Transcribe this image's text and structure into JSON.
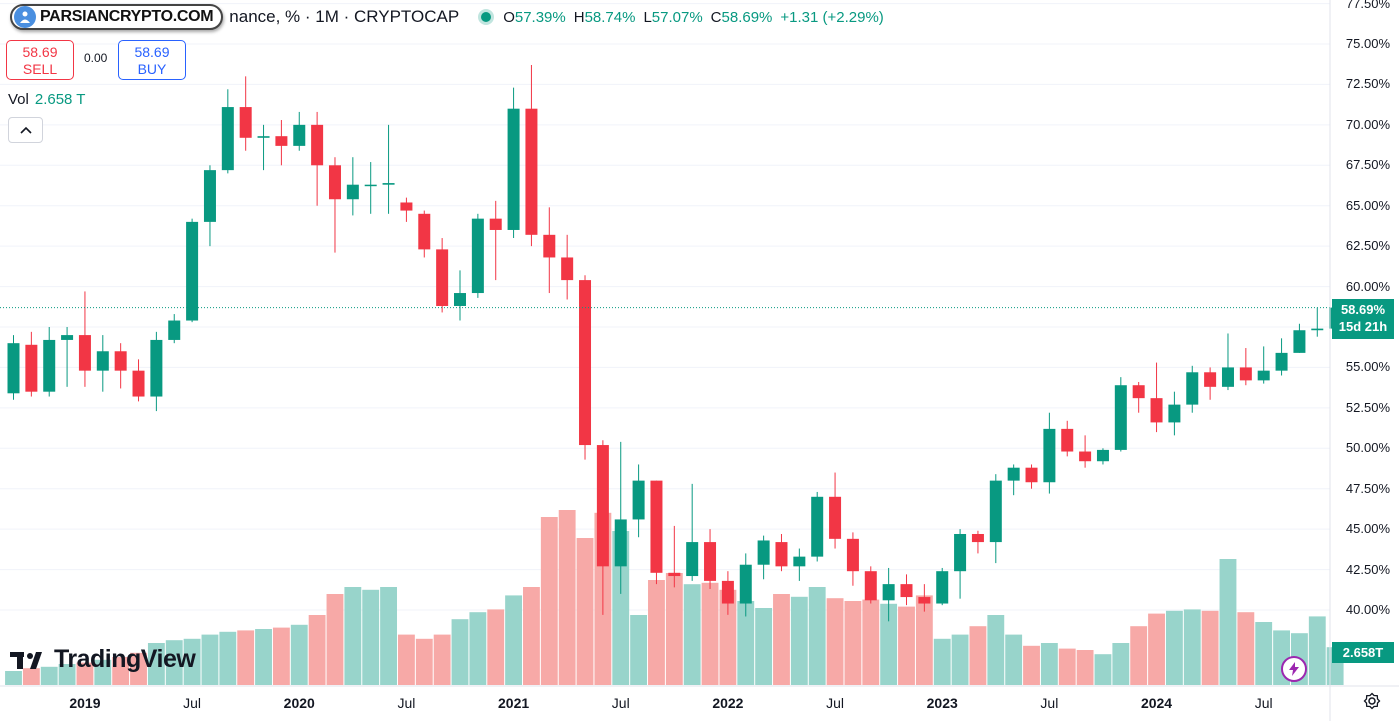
{
  "header": {
    "logo_text": "PARSIANCRYPTO.COM",
    "symbol": "nance, % · 1M · CRYPTOCAP",
    "ohlc": {
      "o_label": "O",
      "o": "57.39%",
      "h_label": "H",
      "h": "58.74%",
      "l_label": "L",
      "l": "57.07%",
      "c_label": "C",
      "c": "58.69%",
      "change": "+1.31 (+2.29%)"
    }
  },
  "trade": {
    "sell_price": "58.69",
    "sell_label": "SELL",
    "spread": "0.00",
    "buy_price": "58.69",
    "buy_label": "BUY"
  },
  "volume_label": {
    "label": "Vol",
    "value": "2.658 T"
  },
  "watermark": "TradingView",
  "price_axis_tag": {
    "price": "58.69%",
    "countdown": "15d 21h"
  },
  "volume_axis_tag": "2.658T",
  "colors": {
    "up": "#089981",
    "down": "#f23645",
    "vol_up": "#98d4cb",
    "vol_down": "#f7a9a7"
  },
  "chart_data": {
    "type": "candlestick",
    "interval": "1M",
    "y_axis": {
      "ticks": [
        "77.50%",
        "75.00%",
        "72.50%",
        "70.00%",
        "67.50%",
        "65.00%",
        "62.50%",
        "60.00%",
        "57.50%",
        "55.00%",
        "52.50%",
        "50.00%",
        "47.50%",
        "45.00%",
        "42.50%",
        "40.00%"
      ],
      "ylim": [
        37.0,
        78.0
      ]
    },
    "x_axis": {
      "labels": [
        {
          "text": "2019",
          "year": true,
          "index": 4
        },
        {
          "text": "Jul",
          "year": false,
          "index": 10
        },
        {
          "text": "2020",
          "year": true,
          "index": 16
        },
        {
          "text": "Jul",
          "year": false,
          "index": 22
        },
        {
          "text": "2021",
          "year": true,
          "index": 28
        },
        {
          "text": "Jul",
          "year": false,
          "index": 34
        },
        {
          "text": "2022",
          "year": true,
          "index": 40
        },
        {
          "text": "Jul",
          "year": false,
          "index": 46
        },
        {
          "text": "2023",
          "year": true,
          "index": 52
        },
        {
          "text": "Jul",
          "year": false,
          "index": 58
        },
        {
          "text": "2024",
          "year": true,
          "index": 64
        },
        {
          "text": "Jul",
          "year": false,
          "index": 70
        }
      ]
    },
    "candles": [
      [
        53.4,
        56.5,
        53.0,
        57.0,
        1.0
      ],
      [
        56.4,
        53.5,
        53.2,
        57.2,
        1.2
      ],
      [
        53.5,
        56.7,
        53.2,
        57.5,
        1.3
      ],
      [
        56.7,
        57.0,
        53.8,
        57.5,
        1.5
      ],
      [
        57.0,
        54.8,
        53.8,
        59.7,
        1.6
      ],
      [
        54.8,
        56.0,
        53.5,
        57.0,
        1.8
      ],
      [
        56.0,
        54.8,
        53.7,
        56.5,
        2.0
      ],
      [
        54.8,
        53.2,
        52.9,
        55.5,
        2.3
      ],
      [
        53.2,
        56.7,
        52.3,
        57.2,
        3.0
      ],
      [
        56.7,
        57.9,
        56.5,
        58.3,
        3.2
      ],
      [
        57.9,
        64.0,
        57.8,
        64.2,
        3.3
      ],
      [
        64.0,
        67.2,
        62.5,
        67.5,
        3.6
      ],
      [
        67.2,
        71.1,
        67.0,
        72.2,
        3.8
      ],
      [
        71.1,
        69.2,
        68.4,
        73.0,
        3.9
      ],
      [
        69.2,
        69.3,
        67.2,
        70.0,
        4.0
      ],
      [
        69.3,
        68.7,
        67.5,
        70.3,
        4.1
      ],
      [
        68.7,
        70.0,
        68.4,
        70.8,
        4.3
      ],
      [
        70.0,
        67.5,
        65.0,
        70.8,
        5.0
      ],
      [
        67.5,
        65.4,
        62.1,
        68.0,
        6.5
      ],
      [
        65.4,
        66.3,
        64.4,
        68.0,
        7.0
      ],
      [
        66.3,
        66.3,
        64.5,
        67.7,
        6.8
      ],
      [
        66.3,
        66.4,
        64.5,
        70.0,
        7.0
      ],
      [
        65.2,
        64.7,
        64.0,
        65.5,
        3.6
      ],
      [
        64.5,
        62.3,
        61.8,
        64.7,
        3.3
      ],
      [
        62.3,
        58.8,
        58.4,
        63.0,
        3.6
      ],
      [
        58.8,
        59.6,
        57.9,
        61.0,
        4.7
      ],
      [
        59.6,
        64.2,
        59.3,
        64.5,
        5.2
      ],
      [
        64.2,
        63.5,
        60.4,
        65.3,
        5.4
      ],
      [
        63.5,
        71.0,
        63.0,
        72.3,
        6.4
      ],
      [
        71.0,
        63.2,
        62.5,
        73.7,
        7.0
      ],
      [
        63.2,
        61.8,
        59.6,
        64.9,
        12.0
      ],
      [
        61.8,
        60.4,
        59.2,
        63.2,
        12.5
      ],
      [
        60.4,
        50.2,
        49.3,
        60.7,
        10.5
      ],
      [
        50.2,
        42.7,
        39.7,
        50.5,
        12.3
      ],
      [
        42.7,
        45.6,
        41.0,
        50.4,
        11.0
      ],
      [
        45.6,
        48.0,
        44.5,
        49.0,
        5.0
      ],
      [
        48.0,
        42.3,
        41.6,
        48.0,
        7.5
      ],
      [
        42.3,
        42.1,
        41.4,
        45.2,
        8.0
      ],
      [
        42.1,
        44.2,
        41.8,
        47.8,
        7.2
      ],
      [
        44.2,
        41.8,
        41.3,
        45.0,
        7.3
      ],
      [
        41.8,
        40.4,
        39.7,
        42.4,
        6.8
      ],
      [
        40.4,
        42.8,
        39.6,
        43.5,
        6.0
      ],
      [
        42.8,
        44.3,
        41.9,
        44.6,
        5.5
      ],
      [
        44.2,
        42.7,
        42.4,
        44.7,
        6.5
      ],
      [
        42.7,
        43.3,
        41.8,
        43.8,
        6.3
      ],
      [
        43.3,
        47.0,
        43.0,
        47.3,
        7.0
      ],
      [
        47.0,
        44.4,
        43.8,
        48.5,
        6.2
      ],
      [
        44.4,
        42.4,
        41.5,
        44.8,
        6.0
      ],
      [
        42.4,
        40.6,
        40.4,
        42.7,
        6.1
      ],
      [
        40.6,
        41.6,
        39.3,
        42.6,
        5.8
      ],
      [
        41.6,
        40.8,
        40.3,
        42.2,
        5.6
      ],
      [
        40.8,
        40.4,
        39.9,
        41.6,
        6.4
      ],
      [
        40.4,
        42.4,
        40.3,
        42.6,
        3.3
      ],
      [
        42.4,
        44.7,
        40.7,
        45.0,
        3.6
      ],
      [
        44.7,
        44.2,
        43.5,
        44.9,
        4.2
      ],
      [
        44.2,
        48.0,
        42.9,
        48.4,
        5.0
      ],
      [
        48.0,
        48.8,
        47.1,
        49.0,
        3.6
      ],
      [
        48.8,
        47.9,
        47.5,
        49.0,
        2.8
      ],
      [
        47.9,
        51.2,
        47.2,
        52.2,
        3.0
      ],
      [
        51.2,
        49.8,
        49.5,
        51.7,
        2.6
      ],
      [
        49.8,
        49.2,
        48.8,
        50.8,
        2.5
      ],
      [
        49.2,
        49.9,
        49.0,
        50.0,
        2.2
      ],
      [
        49.9,
        53.9,
        49.8,
        54.4,
        3.0
      ],
      [
        53.9,
        53.1,
        52.2,
        54.1,
        4.2
      ],
      [
        53.1,
        51.6,
        51.0,
        55.3,
        5.1
      ],
      [
        51.6,
        52.7,
        50.8,
        53.5,
        5.3
      ],
      [
        52.7,
        54.7,
        52.2,
        55.1,
        5.4
      ],
      [
        54.7,
        53.8,
        53.0,
        55.0,
        5.3
      ],
      [
        53.8,
        55.0,
        53.6,
        57.1,
        9.0
      ],
      [
        55.0,
        54.2,
        53.9,
        56.2,
        5.2
      ],
      [
        54.2,
        54.8,
        54.0,
        56.3,
        4.5
      ],
      [
        54.8,
        55.9,
        54.5,
        56.8,
        3.9
      ],
      [
        55.9,
        57.3,
        55.9,
        57.7,
        3.7
      ],
      [
        57.3,
        57.4,
        56.9,
        58.7,
        4.9
      ],
      [
        57.4,
        58.7,
        57.1,
        58.7,
        2.7
      ]
    ],
    "candle_fields": [
      "open",
      "close",
      "low",
      "high",
      "volume_relative"
    ]
  }
}
